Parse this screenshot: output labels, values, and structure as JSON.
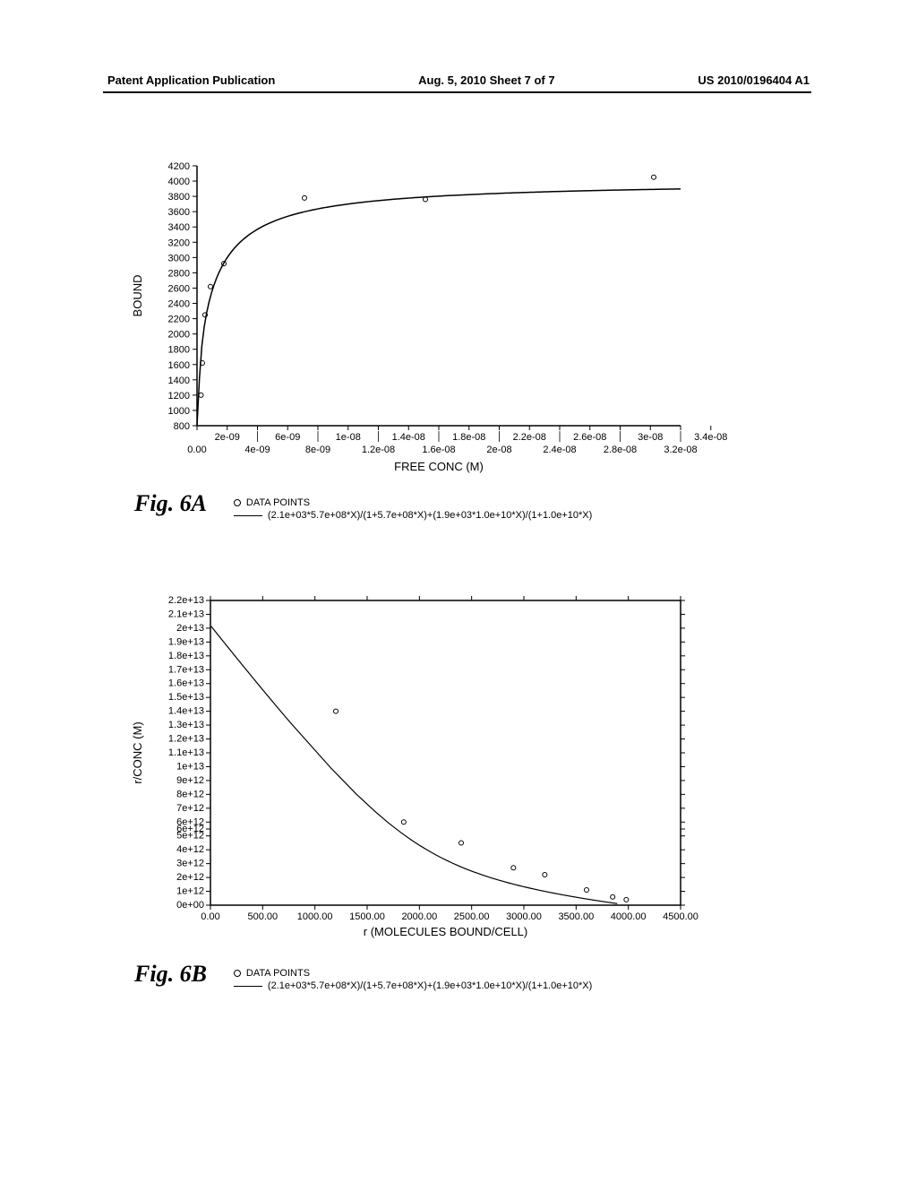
{
  "header": {
    "left": "Patent Application Publication",
    "center": "Aug. 5, 2010  Sheet 7 of 7",
    "right": "US 2010/0196404 A1"
  },
  "chartA": {
    "type": "line-scatter",
    "title_fig": "Fig.  6A",
    "ylabel": "BOUND",
    "xlabel": "FREE CONC (M)",
    "y_ticks": [
      800,
      1000,
      1200,
      1400,
      1600,
      1800,
      2000,
      2200,
      2400,
      2600,
      2800,
      3000,
      3200,
      3400,
      3600,
      3800,
      4000,
      4200
    ],
    "x_ticks_top": [
      "2e-09",
      "6e-09",
      "1e-08",
      "1.4e-08",
      "1.8e-08",
      "2.2e-08",
      "2.6e-08",
      "3e-08",
      "3.4e-08"
    ],
    "x_ticks_bottom": [
      "0.00",
      "4e-09",
      "8e-09",
      "1.2e-08",
      "1.6e-08",
      "2e-08",
      "2.4e-08",
      "2.8e-08",
      "3.2e-08"
    ],
    "x_min": 0.0,
    "x_max": 3.6e-08,
    "y_min": 800,
    "y_max": 4200,
    "points": [
      [
        3e-10,
        1200
      ],
      [
        4e-10,
        1620
      ],
      [
        6e-10,
        2250
      ],
      [
        1e-09,
        2620
      ],
      [
        2e-09,
        2920
      ],
      [
        8e-09,
        3780
      ],
      [
        1.7e-08,
        3760
      ],
      [
        3.4e-08,
        4050
      ]
    ],
    "legend": {
      "points_label": "DATA POINTS",
      "formula": "(2.1e+03*5.7e+08*X)/(1+5.7e+08*X)+(1.9e+03*1.0e+10*X)/(1+1.0e+10*X)"
    },
    "colors": {
      "axis": "#000000",
      "line": "#000000",
      "point_stroke": "#000000",
      "background": "#ffffff"
    },
    "line_width": 1.5,
    "point_radius": 2.5
  },
  "chartB": {
    "type": "line-scatter",
    "title_fig": "Fig.  6B",
    "ylabel": "r/CONC (M)",
    "xlabel": "r (MOLECULES BOUND/CELL)",
    "y_ticks_labels": [
      "0e+00",
      "1e+12",
      "2e+12",
      "3e+12",
      "4e+12",
      "5e+12",
      "6e+12",
      "6e+12",
      "7e+12",
      "8e+12",
      "9e+12",
      "1e+13",
      "1.1e+13",
      "1.2e+13",
      "1.3e+13",
      "1.4e+13",
      "1.5e+13",
      "1.6e+13",
      "1.7e+13",
      "1.8e+13",
      "1.9e+13",
      "2e+13",
      "2.1e+13",
      "2.2e+13"
    ],
    "y_ticks_vals": [
      0,
      1000000000000.0,
      2000000000000.0,
      3000000000000.0,
      4000000000000.0,
      5000000000000.0,
      5500000000000.0,
      6000000000000.0,
      7000000000000.0,
      8000000000000.0,
      9000000000000.0,
      10000000000000.0,
      11000000000000.0,
      12000000000000.0,
      13000000000000.0,
      14000000000000.0,
      15000000000000.0,
      16000000000000.0,
      17000000000000.0,
      18000000000000.0,
      19000000000000.0,
      20000000000000.0,
      21000000000000.0,
      22000000000000.0
    ],
    "x_ticks": [
      "0.00",
      "500.00",
      "1000.00",
      "1500.00",
      "2000.00",
      "2500.00",
      "3000.00",
      "3500.00",
      "4000.00",
      "4500.00"
    ],
    "x_min": 0,
    "x_max": 4500,
    "y_min": 0,
    "y_max": 22000000000000.0,
    "points": [
      [
        1200,
        14000000000000.0
      ],
      [
        1850,
        6000000000000.0
      ],
      [
        2400,
        4500000000000.0
      ],
      [
        2900,
        2700000000000.0
      ],
      [
        3200,
        2200000000000.0
      ],
      [
        3600,
        1100000000000.0
      ],
      [
        3850,
        600000000000.0
      ],
      [
        3980,
        400000000000.0
      ]
    ],
    "legend": {
      "points_label": "DATA POINTS",
      "formula": "(2.1e+03*5.7e+08*X)/(1+5.7e+08*X)+(1.9e+03*1.0e+10*X)/(1+1.0e+10*X)"
    },
    "colors": {
      "axis": "#000000",
      "line": "#000000",
      "point_stroke": "#000000",
      "background": "#ffffff"
    },
    "line_width": 1.2,
    "point_radius": 2.5
  }
}
